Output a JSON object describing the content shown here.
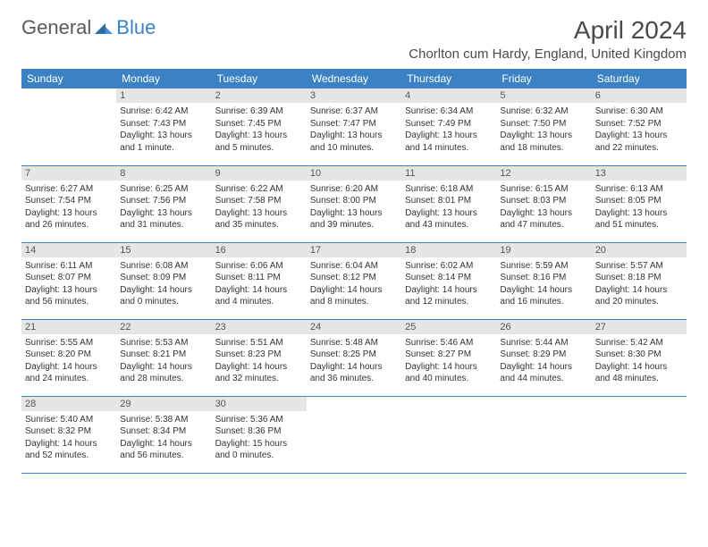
{
  "logo": {
    "part1": "General",
    "part2": "Blue"
  },
  "title": "April 2024",
  "location": "Chorlton cum Hardy, England, United Kingdom",
  "colors": {
    "header_bg": "#3b82c4",
    "header_text": "#ffffff",
    "daybar_bg": "#e6e6e6",
    "border": "#3b82c4",
    "logo_gray": "#5a5a5a",
    "logo_blue": "#3b82c4"
  },
  "weekdays": [
    "Sunday",
    "Monday",
    "Tuesday",
    "Wednesday",
    "Thursday",
    "Friday",
    "Saturday"
  ],
  "weeks": [
    [
      {
        "day": "",
        "sunrise": "",
        "sunset": "",
        "daylight": ""
      },
      {
        "day": "1",
        "sunrise": "Sunrise: 6:42 AM",
        "sunset": "Sunset: 7:43 PM",
        "daylight": "Daylight: 13 hours and 1 minute."
      },
      {
        "day": "2",
        "sunrise": "Sunrise: 6:39 AM",
        "sunset": "Sunset: 7:45 PM",
        "daylight": "Daylight: 13 hours and 5 minutes."
      },
      {
        "day": "3",
        "sunrise": "Sunrise: 6:37 AM",
        "sunset": "Sunset: 7:47 PM",
        "daylight": "Daylight: 13 hours and 10 minutes."
      },
      {
        "day": "4",
        "sunrise": "Sunrise: 6:34 AM",
        "sunset": "Sunset: 7:49 PM",
        "daylight": "Daylight: 13 hours and 14 minutes."
      },
      {
        "day": "5",
        "sunrise": "Sunrise: 6:32 AM",
        "sunset": "Sunset: 7:50 PM",
        "daylight": "Daylight: 13 hours and 18 minutes."
      },
      {
        "day": "6",
        "sunrise": "Sunrise: 6:30 AM",
        "sunset": "Sunset: 7:52 PM",
        "daylight": "Daylight: 13 hours and 22 minutes."
      }
    ],
    [
      {
        "day": "7",
        "sunrise": "Sunrise: 6:27 AM",
        "sunset": "Sunset: 7:54 PM",
        "daylight": "Daylight: 13 hours and 26 minutes."
      },
      {
        "day": "8",
        "sunrise": "Sunrise: 6:25 AM",
        "sunset": "Sunset: 7:56 PM",
        "daylight": "Daylight: 13 hours and 31 minutes."
      },
      {
        "day": "9",
        "sunrise": "Sunrise: 6:22 AM",
        "sunset": "Sunset: 7:58 PM",
        "daylight": "Daylight: 13 hours and 35 minutes."
      },
      {
        "day": "10",
        "sunrise": "Sunrise: 6:20 AM",
        "sunset": "Sunset: 8:00 PM",
        "daylight": "Daylight: 13 hours and 39 minutes."
      },
      {
        "day": "11",
        "sunrise": "Sunrise: 6:18 AM",
        "sunset": "Sunset: 8:01 PM",
        "daylight": "Daylight: 13 hours and 43 minutes."
      },
      {
        "day": "12",
        "sunrise": "Sunrise: 6:15 AM",
        "sunset": "Sunset: 8:03 PM",
        "daylight": "Daylight: 13 hours and 47 minutes."
      },
      {
        "day": "13",
        "sunrise": "Sunrise: 6:13 AM",
        "sunset": "Sunset: 8:05 PM",
        "daylight": "Daylight: 13 hours and 51 minutes."
      }
    ],
    [
      {
        "day": "14",
        "sunrise": "Sunrise: 6:11 AM",
        "sunset": "Sunset: 8:07 PM",
        "daylight": "Daylight: 13 hours and 56 minutes."
      },
      {
        "day": "15",
        "sunrise": "Sunrise: 6:08 AM",
        "sunset": "Sunset: 8:09 PM",
        "daylight": "Daylight: 14 hours and 0 minutes."
      },
      {
        "day": "16",
        "sunrise": "Sunrise: 6:06 AM",
        "sunset": "Sunset: 8:11 PM",
        "daylight": "Daylight: 14 hours and 4 minutes."
      },
      {
        "day": "17",
        "sunrise": "Sunrise: 6:04 AM",
        "sunset": "Sunset: 8:12 PM",
        "daylight": "Daylight: 14 hours and 8 minutes."
      },
      {
        "day": "18",
        "sunrise": "Sunrise: 6:02 AM",
        "sunset": "Sunset: 8:14 PM",
        "daylight": "Daylight: 14 hours and 12 minutes."
      },
      {
        "day": "19",
        "sunrise": "Sunrise: 5:59 AM",
        "sunset": "Sunset: 8:16 PM",
        "daylight": "Daylight: 14 hours and 16 minutes."
      },
      {
        "day": "20",
        "sunrise": "Sunrise: 5:57 AM",
        "sunset": "Sunset: 8:18 PM",
        "daylight": "Daylight: 14 hours and 20 minutes."
      }
    ],
    [
      {
        "day": "21",
        "sunrise": "Sunrise: 5:55 AM",
        "sunset": "Sunset: 8:20 PM",
        "daylight": "Daylight: 14 hours and 24 minutes."
      },
      {
        "day": "22",
        "sunrise": "Sunrise: 5:53 AM",
        "sunset": "Sunset: 8:21 PM",
        "daylight": "Daylight: 14 hours and 28 minutes."
      },
      {
        "day": "23",
        "sunrise": "Sunrise: 5:51 AM",
        "sunset": "Sunset: 8:23 PM",
        "daylight": "Daylight: 14 hours and 32 minutes."
      },
      {
        "day": "24",
        "sunrise": "Sunrise: 5:48 AM",
        "sunset": "Sunset: 8:25 PM",
        "daylight": "Daylight: 14 hours and 36 minutes."
      },
      {
        "day": "25",
        "sunrise": "Sunrise: 5:46 AM",
        "sunset": "Sunset: 8:27 PM",
        "daylight": "Daylight: 14 hours and 40 minutes."
      },
      {
        "day": "26",
        "sunrise": "Sunrise: 5:44 AM",
        "sunset": "Sunset: 8:29 PM",
        "daylight": "Daylight: 14 hours and 44 minutes."
      },
      {
        "day": "27",
        "sunrise": "Sunrise: 5:42 AM",
        "sunset": "Sunset: 8:30 PM",
        "daylight": "Daylight: 14 hours and 48 minutes."
      }
    ],
    [
      {
        "day": "28",
        "sunrise": "Sunrise: 5:40 AM",
        "sunset": "Sunset: 8:32 PM",
        "daylight": "Daylight: 14 hours and 52 minutes."
      },
      {
        "day": "29",
        "sunrise": "Sunrise: 5:38 AM",
        "sunset": "Sunset: 8:34 PM",
        "daylight": "Daylight: 14 hours and 56 minutes."
      },
      {
        "day": "30",
        "sunrise": "Sunrise: 5:36 AM",
        "sunset": "Sunset: 8:36 PM",
        "daylight": "Daylight: 15 hours and 0 minutes."
      },
      {
        "day": "",
        "sunrise": "",
        "sunset": "",
        "daylight": ""
      },
      {
        "day": "",
        "sunrise": "",
        "sunset": "",
        "daylight": ""
      },
      {
        "day": "",
        "sunrise": "",
        "sunset": "",
        "daylight": ""
      },
      {
        "day": "",
        "sunrise": "",
        "sunset": "",
        "daylight": ""
      }
    ]
  ]
}
